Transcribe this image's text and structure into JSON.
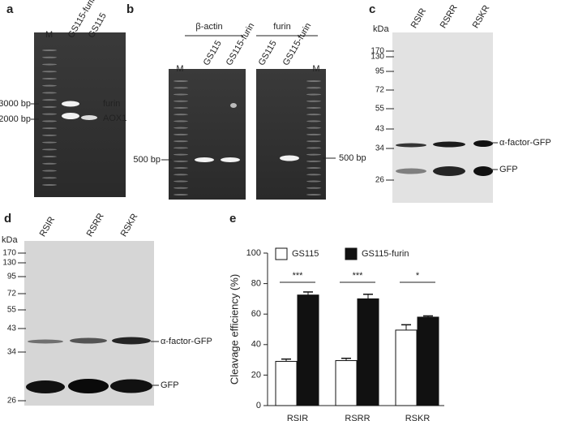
{
  "panel_a": {
    "label": "a",
    "lanes": [
      "M",
      "GS115-furin",
      "GS115"
    ],
    "size_labels": [
      "3000 bp",
      "2000 bp"
    ],
    "band_labels": [
      "furin",
      "AOX1"
    ]
  },
  "panel_b": {
    "label": "b",
    "groups": [
      "β-actin",
      "furin"
    ],
    "lanes": [
      "M",
      "GS115",
      "GS115-furin",
      "GS115",
      "GS115-furin",
      "M"
    ],
    "size_labels": [
      "500 bp",
      "500 bp"
    ]
  },
  "panel_c": {
    "label": "c",
    "unit": "kDa",
    "lanes": [
      "RSIR",
      "RSRR",
      "RSKR"
    ],
    "markers": [
      "170",
      "130",
      "95",
      "72",
      "55",
      "43",
      "34",
      "26"
    ],
    "band_labels": [
      "α-factor-GFP",
      "GFP"
    ]
  },
  "panel_d": {
    "label": "d",
    "unit": "kDa",
    "lanes": [
      "RSIR",
      "RSRR",
      "RSKR"
    ],
    "markers": [
      "170",
      "130",
      "95",
      "72",
      "55",
      "43",
      "34",
      "26"
    ],
    "band_labels": [
      "α-factor-GFP",
      "GFP"
    ]
  },
  "panel_e": {
    "label": "e"
  },
  "chart_data": {
    "type": "bar",
    "y_label": "Cleavage efficiency (%)",
    "categories": [
      "RSIR",
      "RSRR",
      "RSKR"
    ],
    "series": [
      {
        "name": "GS115",
        "color": "#ffffff",
        "values": [
          29,
          29.5,
          49.5
        ],
        "errors": [
          1.5,
          1.5,
          3.5
        ]
      },
      {
        "name": "GS115-furin",
        "color": "#111111",
        "values": [
          72.5,
          70,
          58
        ],
        "errors": [
          2,
          3,
          0.8
        ]
      }
    ],
    "annotations": [
      "***",
      "***",
      "*"
    ],
    "ylim": [
      0,
      100
    ],
    "yticks": [
      0,
      20,
      40,
      60,
      80,
      100
    ]
  }
}
